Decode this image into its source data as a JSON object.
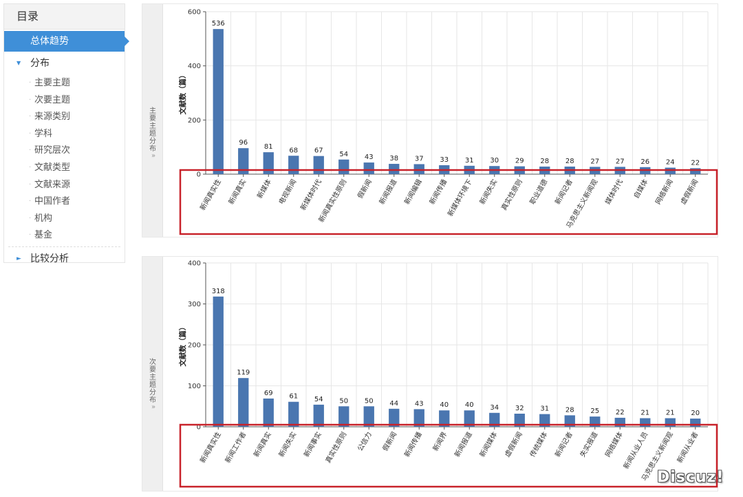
{
  "sidebar": {
    "title": "目录",
    "active_item": "总体趋势",
    "group_distribution": "分布",
    "items": [
      "主要主题",
      "次要主题",
      "来源类别",
      "学科",
      "研究层次",
      "文献类型",
      "文献来源",
      "中国作者",
      "机构",
      "基金"
    ],
    "group_compare": "比较分析"
  },
  "panels": [
    {
      "tab_label": "主要主题分布",
      "tab_arrow": "»"
    },
    {
      "tab_label": "次要主题分布",
      "tab_arrow": "»"
    }
  ],
  "watermark": "Discuz!",
  "colors": {
    "bar": "#4a76b0",
    "highlight_box": "#c8222a",
    "accent": "#3f8fd8"
  },
  "chart_data": [
    {
      "type": "bar",
      "title": "",
      "xlabel": "",
      "ylabel": "文献数（篇）",
      "ylim": [
        0,
        600
      ],
      "yticks": [
        0,
        200,
        400,
        600
      ],
      "grid": true,
      "categories": [
        "新闻真实性",
        "新闻真实",
        "新媒体",
        "电视新闻",
        "新媒体时代",
        "新闻真实性原则",
        "假新闻",
        "新闻报道",
        "新闻编辑",
        "新闻传播",
        "新媒体环境下",
        "新闻失实",
        "真实性原则",
        "职业道德",
        "新闻记者",
        "马克思主义新闻观",
        "媒体时代",
        "自媒体",
        "网络新闻",
        "虚假新闻"
      ],
      "values": [
        536,
        96,
        81,
        68,
        67,
        54,
        43,
        38,
        37,
        33,
        31,
        30,
        29,
        28,
        28,
        27,
        27,
        26,
        24,
        22
      ]
    },
    {
      "type": "bar",
      "title": "",
      "xlabel": "",
      "ylabel": "文献数（篇）",
      "ylim": [
        0,
        400
      ],
      "yticks": [
        0,
        100,
        200,
        300,
        400
      ],
      "grid": true,
      "categories": [
        "新闻真实性",
        "新闻工作者",
        "新闻真实",
        "新闻失实",
        "新闻事实",
        "真实性原则",
        "公信力",
        "假新闻",
        "新闻传播",
        "新闻界",
        "新闻报道",
        "新闻媒体",
        "虚假新闻",
        "传统媒体",
        "新闻记者",
        "失实报道",
        "网络媒体",
        "新闻从业人员",
        "马克思主义新闻观",
        "新闻从业者"
      ],
      "values": [
        318,
        119,
        69,
        61,
        54,
        50,
        50,
        44,
        43,
        40,
        40,
        34,
        32,
        31,
        28,
        25,
        22,
        21,
        21,
        20
      ]
    }
  ]
}
